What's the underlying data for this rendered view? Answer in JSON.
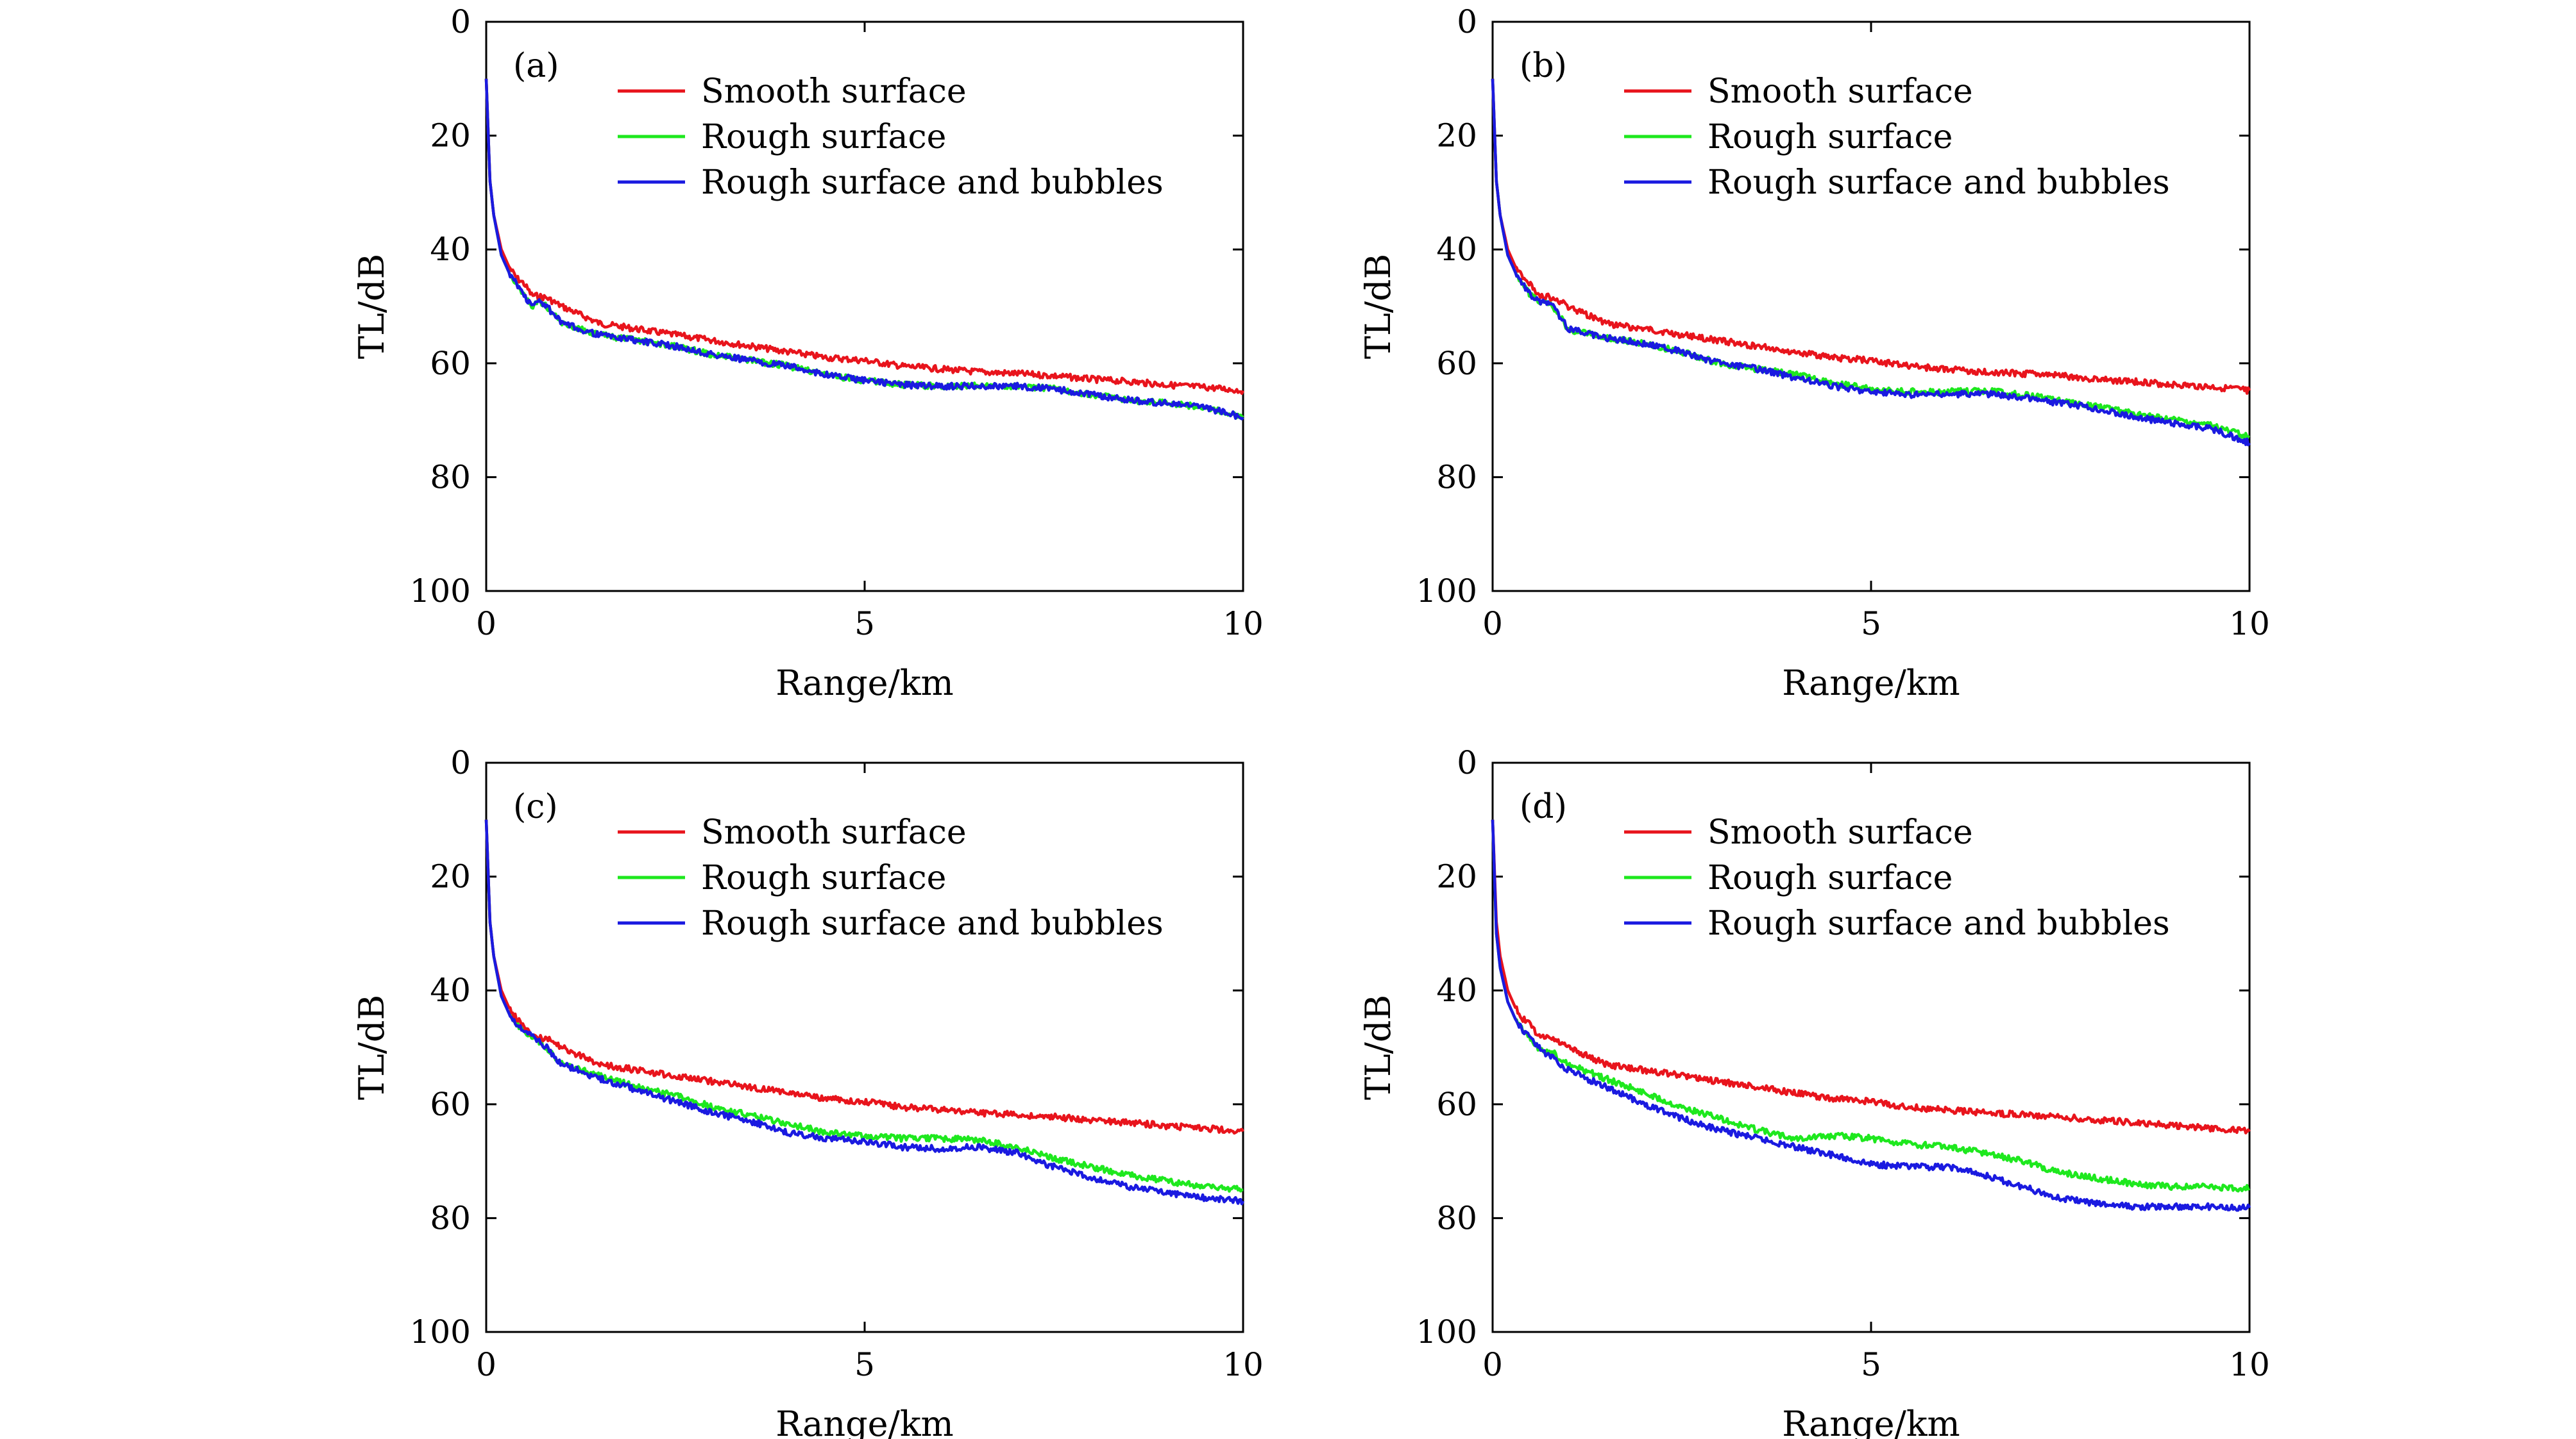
{
  "colors": {
    "smooth": "#e8141c",
    "rough": "#1ee81e",
    "bubbles": "#1a1ae0",
    "axis": "#000000"
  },
  "chart_data": [
    {
      "type": "line",
      "panel_label": "(a)",
      "xlabel": "Range/km",
      "ylabel": "TL/dB",
      "xlim": [
        0,
        10
      ],
      "ylim": [
        0,
        100
      ],
      "y_inverted": true,
      "x_ticks": [
        "0",
        "5",
        "10"
      ],
      "y_ticks": [
        "0",
        "20",
        "40",
        "60",
        "80",
        "100"
      ],
      "legend_position": "top-right",
      "series": [
        {
          "name": "Smooth surface",
          "color": "#e8141c",
          "x": [
            0,
            0.05,
            0.1,
            0.2,
            0.3,
            0.4,
            0.5,
            0.6,
            0.8,
            1.0,
            1.5,
            2.0,
            2.5,
            3.0,
            3.5,
            4.0,
            4.5,
            5.0,
            5.5,
            6.0,
            6.5,
            7.0,
            7.5,
            8.0,
            8.5,
            9.0,
            9.5,
            10.0
          ],
          "y": [
            10,
            28,
            34,
            40,
            43,
            45,
            46,
            48,
            48.5,
            50,
            53,
            54,
            55,
            56,
            57,
            58,
            59,
            59.5,
            60.5,
            61,
            61.5,
            61.8,
            62.2,
            62.8,
            63.2,
            63.8,
            64.2,
            64.8
          ]
        },
        {
          "name": "Rough surface",
          "color": "#1ee81e",
          "x": [
            0,
            0.05,
            0.1,
            0.2,
            0.3,
            0.4,
            0.5,
            0.6,
            0.7,
            0.8,
            1.0,
            1.5,
            2.0,
            2.5,
            3.0,
            3.5,
            4.0,
            4.5,
            5.0,
            5.5,
            6.0,
            6.5,
            7.0,
            7.5,
            8.0,
            8.5,
            9.0,
            9.5,
            10.0
          ],
          "y": [
            10,
            28,
            34,
            41,
            44,
            46,
            48,
            50,
            49,
            50,
            53,
            55,
            56,
            57,
            58.5,
            59.5,
            60.5,
            62,
            63,
            63.8,
            64,
            64,
            64,
            64.5,
            65.5,
            66.5,
            67,
            67.8,
            69.5
          ]
        },
        {
          "name": "Rough surface and bubbles",
          "color": "#1a1ae0",
          "x": [
            0,
            0.05,
            0.1,
            0.2,
            0.3,
            0.4,
            0.5,
            0.6,
            0.7,
            0.8,
            1.0,
            1.5,
            2.0,
            2.5,
            3.0,
            3.5,
            4.0,
            4.5,
            5.0,
            5.5,
            6.0,
            6.5,
            7.0,
            7.5,
            8.0,
            8.5,
            9.0,
            9.5,
            10.0
          ],
          "y": [
            10,
            28,
            34,
            41,
            44,
            46,
            48,
            50,
            49,
            50,
            53,
            55,
            56,
            57,
            58.5,
            59.5,
            60.5,
            62,
            63,
            63.8,
            64,
            64,
            64,
            64.5,
            65.5,
            66.5,
            67,
            67.8,
            69.5
          ]
        }
      ]
    },
    {
      "type": "line",
      "panel_label": "(b)",
      "xlabel": "Range/km",
      "ylabel": "TL/dB",
      "xlim": [
        0,
        10
      ],
      "ylim": [
        0,
        100
      ],
      "y_inverted": true,
      "x_ticks": [
        "0",
        "5",
        "10"
      ],
      "y_ticks": [
        "0",
        "20",
        "40",
        "60",
        "80",
        "100"
      ],
      "legend_position": "top-right",
      "series": [
        {
          "name": "Smooth surface",
          "color": "#e8141c",
          "x": [
            0,
            0.05,
            0.1,
            0.2,
            0.3,
            0.4,
            0.5,
            0.6,
            0.8,
            1.0,
            1.5,
            2.0,
            2.5,
            3.0,
            3.5,
            4.0,
            4.5,
            5.0,
            5.5,
            6.0,
            6.5,
            7.0,
            7.5,
            8.0,
            8.5,
            9.0,
            9.5,
            10.0
          ],
          "y": [
            10,
            28,
            34,
            40,
            43,
            45,
            46,
            48,
            48.5,
            50,
            53,
            54,
            55,
            56,
            57,
            58,
            59,
            59.5,
            60.5,
            61,
            61.5,
            61.8,
            62.2,
            62.8,
            63.2,
            63.8,
            64.2,
            64.8
          ]
        },
        {
          "name": "Rough surface",
          "color": "#1ee81e",
          "x": [
            0,
            0.05,
            0.1,
            0.2,
            0.3,
            0.4,
            0.5,
            0.6,
            0.8,
            1.0,
            1.5,
            2.0,
            2.5,
            3.0,
            3.5,
            4.0,
            4.5,
            5.0,
            5.5,
            6.0,
            6.5,
            7.0,
            7.5,
            8.0,
            8.5,
            9.0,
            9.5,
            10.0
          ],
          "y": [
            10,
            28,
            34,
            41,
            44,
            46,
            48,
            49,
            50,
            54,
            55.5,
            56.5,
            58,
            60,
            61,
            62,
            63.5,
            64.5,
            65,
            65,
            64.8,
            65.5,
            66.5,
            67.5,
            69,
            70,
            71,
            73
          ]
        },
        {
          "name": "Rough surface and bubbles",
          "color": "#1a1ae0",
          "x": [
            0,
            0.05,
            0.1,
            0.2,
            0.3,
            0.4,
            0.5,
            0.6,
            0.8,
            1.0,
            1.5,
            2.0,
            2.5,
            3.0,
            3.5,
            4.0,
            4.5,
            5.0,
            5.5,
            6.0,
            6.5,
            7.0,
            7.5,
            8.0,
            8.5,
            9.0,
            9.5,
            10.0
          ],
          "y": [
            10,
            28,
            34,
            41,
            44,
            46,
            48,
            49,
            50,
            54,
            55.5,
            56.5,
            58,
            60,
            61,
            62.5,
            64,
            65,
            65.5,
            65.5,
            65.3,
            66,
            67,
            68,
            69.5,
            70.5,
            71.5,
            74
          ]
        }
      ]
    },
    {
      "type": "line",
      "panel_label": "(c)",
      "xlabel": "Range/km",
      "ylabel": "TL/dB",
      "xlim": [
        0,
        10
      ],
      "ylim": [
        0,
        100
      ],
      "y_inverted": true,
      "x_ticks": [
        "0",
        "5",
        "10"
      ],
      "y_ticks": [
        "0",
        "20",
        "40",
        "60",
        "80",
        "100"
      ],
      "legend_position": "top-right",
      "series": [
        {
          "name": "Smooth surface",
          "color": "#e8141c",
          "x": [
            0,
            0.05,
            0.1,
            0.2,
            0.3,
            0.4,
            0.5,
            0.6,
            0.8,
            1.0,
            1.5,
            2.0,
            2.5,
            3.0,
            3.5,
            4.0,
            4.5,
            5.0,
            5.5,
            6.0,
            6.5,
            7.0,
            7.5,
            8.0,
            8.5,
            9.0,
            9.5,
            10.0
          ],
          "y": [
            10,
            28,
            34,
            40,
            43,
            45,
            46,
            48,
            48.5,
            50,
            53,
            54,
            55,
            56,
            57,
            58,
            59,
            59.5,
            60.5,
            61,
            61.5,
            61.8,
            62.2,
            62.8,
            63.2,
            63.8,
            64.2,
            64.8
          ]
        },
        {
          "name": "Rough surface",
          "color": "#1ee81e",
          "x": [
            0,
            0.05,
            0.1,
            0.2,
            0.3,
            0.4,
            0.5,
            0.6,
            0.8,
            1.0,
            1.5,
            2.0,
            2.5,
            3.0,
            3.5,
            4.0,
            4.5,
            5.0,
            5.5,
            6.0,
            6.5,
            7.0,
            7.5,
            8.0,
            8.5,
            9.0,
            9.5,
            10.0
          ],
          "y": [
            10,
            28,
            34,
            41,
            44,
            46,
            47,
            48,
            50,
            53,
            55,
            57,
            58.5,
            60.5,
            62,
            63.5,
            65,
            65.5,
            66,
            66,
            66.2,
            67.5,
            69.5,
            71,
            72.5,
            73.5,
            74.5,
            75
          ]
        },
        {
          "name": "Rough surface and bubbles",
          "color": "#1a1ae0",
          "x": [
            0,
            0.05,
            0.1,
            0.2,
            0.3,
            0.4,
            0.5,
            0.6,
            0.8,
            1.0,
            1.5,
            2.0,
            2.5,
            3.0,
            3.5,
            4.0,
            4.5,
            5.0,
            5.5,
            6.0,
            6.5,
            7.0,
            7.5,
            8.0,
            8.5,
            9.0,
            9.5,
            10.0
          ],
          "y": [
            10,
            28,
            34,
            41,
            44,
            46,
            47,
            48,
            50,
            53,
            55.5,
            57.5,
            59.5,
            61.5,
            63,
            65,
            66,
            66.5,
            67.5,
            67.8,
            67.5,
            68.5,
            71,
            73,
            74.5,
            75.5,
            76.5,
            77
          ]
        }
      ]
    },
    {
      "type": "line",
      "panel_label": "(d)",
      "xlabel": "Range/km",
      "ylabel": "TL/dB",
      "xlim": [
        0,
        10
      ],
      "ylim": [
        0,
        100
      ],
      "y_inverted": true,
      "x_ticks": [
        "0",
        "5",
        "10"
      ],
      "y_ticks": [
        "0",
        "20",
        "40",
        "60",
        "80",
        "100"
      ],
      "legend_position": "top-right",
      "series": [
        {
          "name": "Smooth surface",
          "color": "#e8141c",
          "x": [
            0,
            0.05,
            0.1,
            0.2,
            0.3,
            0.4,
            0.5,
            0.6,
            0.8,
            1.0,
            1.5,
            2.0,
            2.5,
            3.0,
            3.5,
            4.0,
            4.5,
            5.0,
            5.5,
            6.0,
            6.5,
            7.0,
            7.5,
            8.0,
            8.5,
            9.0,
            9.5,
            10.0
          ],
          "y": [
            10,
            28,
            34,
            40,
            43,
            45,
            46,
            48,
            48.5,
            50,
            53,
            54,
            55,
            56,
            57,
            58,
            59,
            59.5,
            60.5,
            61,
            61.5,
            61.8,
            62.2,
            62.8,
            63.2,
            63.8,
            64.2,
            64.8
          ]
        },
        {
          "name": "Rough surface",
          "color": "#1ee81e",
          "x": [
            0,
            0.05,
            0.1,
            0.2,
            0.3,
            0.4,
            0.5,
            0.6,
            0.8,
            1.0,
            1.5,
            2.0,
            2.5,
            3.0,
            3.5,
            4.0,
            4.5,
            5.0,
            5.5,
            6.0,
            6.5,
            7.0,
            7.5,
            8.0,
            8.5,
            9.0,
            9.5,
            10.0
          ],
          "y": [
            10,
            30,
            36,
            42,
            45,
            47,
            48.5,
            50,
            51,
            53,
            55.5,
            58,
            60.5,
            62.5,
            64.5,
            66,
            65.5,
            66,
            67,
            67.5,
            68.5,
            70,
            72,
            73,
            74,
            74.5,
            74.5,
            74.8
          ]
        },
        {
          "name": "Rough surface and bubbles",
          "color": "#1a1ae0",
          "x": [
            0,
            0.05,
            0.1,
            0.2,
            0.3,
            0.4,
            0.5,
            0.6,
            0.8,
            1.0,
            1.5,
            2.0,
            2.5,
            3.0,
            3.5,
            4.0,
            4.5,
            5.0,
            5.5,
            6.0,
            6.5,
            7.0,
            7.5,
            8.0,
            8.5,
            9.0,
            9.5,
            10.0
          ],
          "y": [
            10,
            30,
            36,
            42,
            45,
            47,
            48.5,
            50,
            52,
            54,
            57,
            60,
            62.5,
            64.5,
            66,
            67.5,
            69,
            70.5,
            71,
            71,
            72.5,
            74.5,
            76.5,
            77.5,
            78,
            78,
            78,
            78.2
          ]
        }
      ]
    }
  ]
}
